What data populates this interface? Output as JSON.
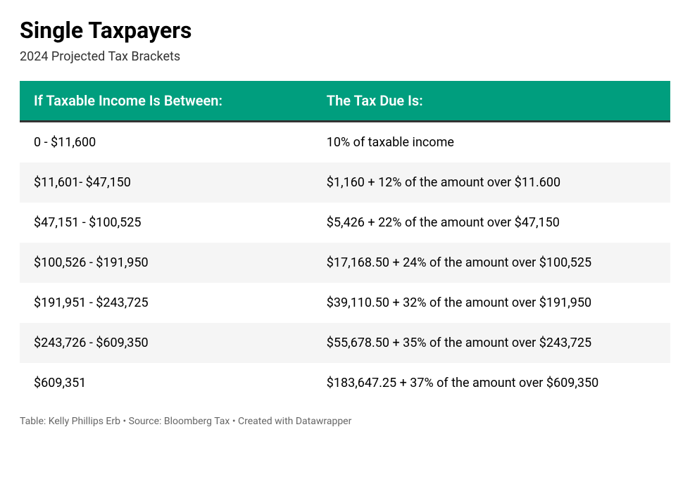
{
  "title": "Single Taxpayers",
  "subtitle": "2024 Projected Tax Brackets",
  "table": {
    "type": "table",
    "header_bg_color": "#009e7e",
    "header_text_color": "#ffffff",
    "header_border_bottom_color": "#333333",
    "header_border_bottom_width": 3,
    "row_alt_bg_color": "#f5f5f5",
    "row_bg_color": "#ffffff",
    "text_color": "#000000",
    "header_fontsize": 20,
    "cell_fontsize": 18,
    "columns": [
      {
        "label": "If Taxable Income Is Between:",
        "width": "45%",
        "align": "left"
      },
      {
        "label": "The Tax Due Is:",
        "width": "55%",
        "align": "left"
      }
    ],
    "rows": [
      [
        "0 - $11,600",
        "10% of taxable income"
      ],
      [
        "$11,601- $47,150",
        "$1,160 + 12% of the amount over $11.600"
      ],
      [
        "$47,151 - $100,525",
        "$5,426 + 22% of the amount over $47,150"
      ],
      [
        "$100,526 - $191,950",
        "$17,168.50 + 24% of the amount over $100,525"
      ],
      [
        "$191,951 - $243,725",
        "$39,110.50 + 32% of the amount over $191,950"
      ],
      [
        "$243,726 - $609,350",
        "$55,678.50 + 35% of the amount over $243,725"
      ],
      [
        "$609,351",
        "$183,647.25 + 37% of the amount over $609,350"
      ]
    ]
  },
  "footer": "Table: Kelly Phillips Erb • Source: Bloomberg Tax • Created with Datawrapper",
  "footer_color": "#666666",
  "footer_fontsize": 14,
  "title_fontsize": 32,
  "title_weight": 700,
  "subtitle_fontsize": 18,
  "background_color": "#ffffff"
}
